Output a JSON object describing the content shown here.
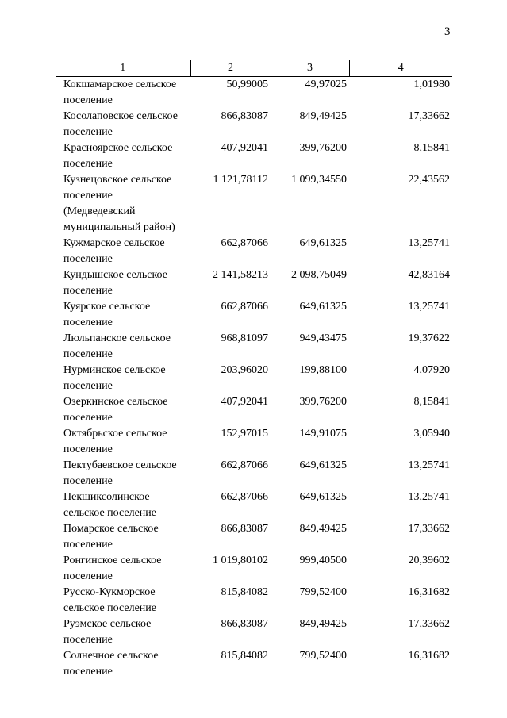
{
  "page": {
    "number": "3"
  },
  "table": {
    "headers": [
      "1",
      "2",
      "3",
      "4"
    ],
    "rows": [
      {
        "name": "Кокшамарское сельское поселение",
        "c2": "50,99005",
        "c3": "49,97025",
        "c4": "1,01980"
      },
      {
        "name": "Косолаповское сельское поселение",
        "c2": "866,83087",
        "c3": "849,49425",
        "c4": "17,33662"
      },
      {
        "name": "Красноярское сельское поселение",
        "c2": "407,92041",
        "c3": "399,76200",
        "c4": "8,15841"
      },
      {
        "name": "Кузнецовское сельское поселение (Медведевский муниципальный район)",
        "c2": "1 121,78112",
        "c3": "1 099,34550",
        "c4": "22,43562"
      },
      {
        "name": "Кужмарское сельское поселение",
        "c2": "662,87066",
        "c3": "649,61325",
        "c4": "13,25741"
      },
      {
        "name": "Кундышское сельское поселение",
        "c2": "2 141,58213",
        "c3": "2 098,75049",
        "c4": "42,83164"
      },
      {
        "name": "Куярское сельское поселение",
        "c2": "662,87066",
        "c3": "649,61325",
        "c4": "13,25741"
      },
      {
        "name": "Люльпанское сельское поселение",
        "c2": "968,81097",
        "c3": "949,43475",
        "c4": "19,37622"
      },
      {
        "name": "Нурминское сельское поселение",
        "c2": "203,96020",
        "c3": "199,88100",
        "c4": "4,07920"
      },
      {
        "name": "Озеркинское сельское поселение",
        "c2": "407,92041",
        "c3": "399,76200",
        "c4": "8,15841"
      },
      {
        "name": "Октябрьское сельское поселение",
        "c2": "152,97015",
        "c3": "149,91075",
        "c4": "3,05940"
      },
      {
        "name": "Пектубаевское сельское поселение",
        "c2": "662,87066",
        "c3": "649,61325",
        "c4": "13,25741"
      },
      {
        "name": "Пекшиксолинское сельское поселение",
        "c2": "662,87066",
        "c3": "649,61325",
        "c4": "13,25741"
      },
      {
        "name": "Помарское сельское поселение",
        "c2": "866,83087",
        "c3": "849,49425",
        "c4": "17,33662"
      },
      {
        "name": "Ронгинское сельское поселение",
        "c2": "1 019,80102",
        "c3": "999,40500",
        "c4": "20,39602"
      },
      {
        "name": "Русско-Кукморское сельское поселение",
        "c2": "815,84082",
        "c3": "799,52400",
        "c4": "16,31682"
      },
      {
        "name": "Руэмское сельское поселение",
        "c2": "866,83087",
        "c3": "849,49425",
        "c4": "17,33662"
      },
      {
        "name": "Солнечное сельское поселение",
        "c2": "815,84082",
        "c3": "799,52400",
        "c4": "16,31682"
      }
    ]
  }
}
